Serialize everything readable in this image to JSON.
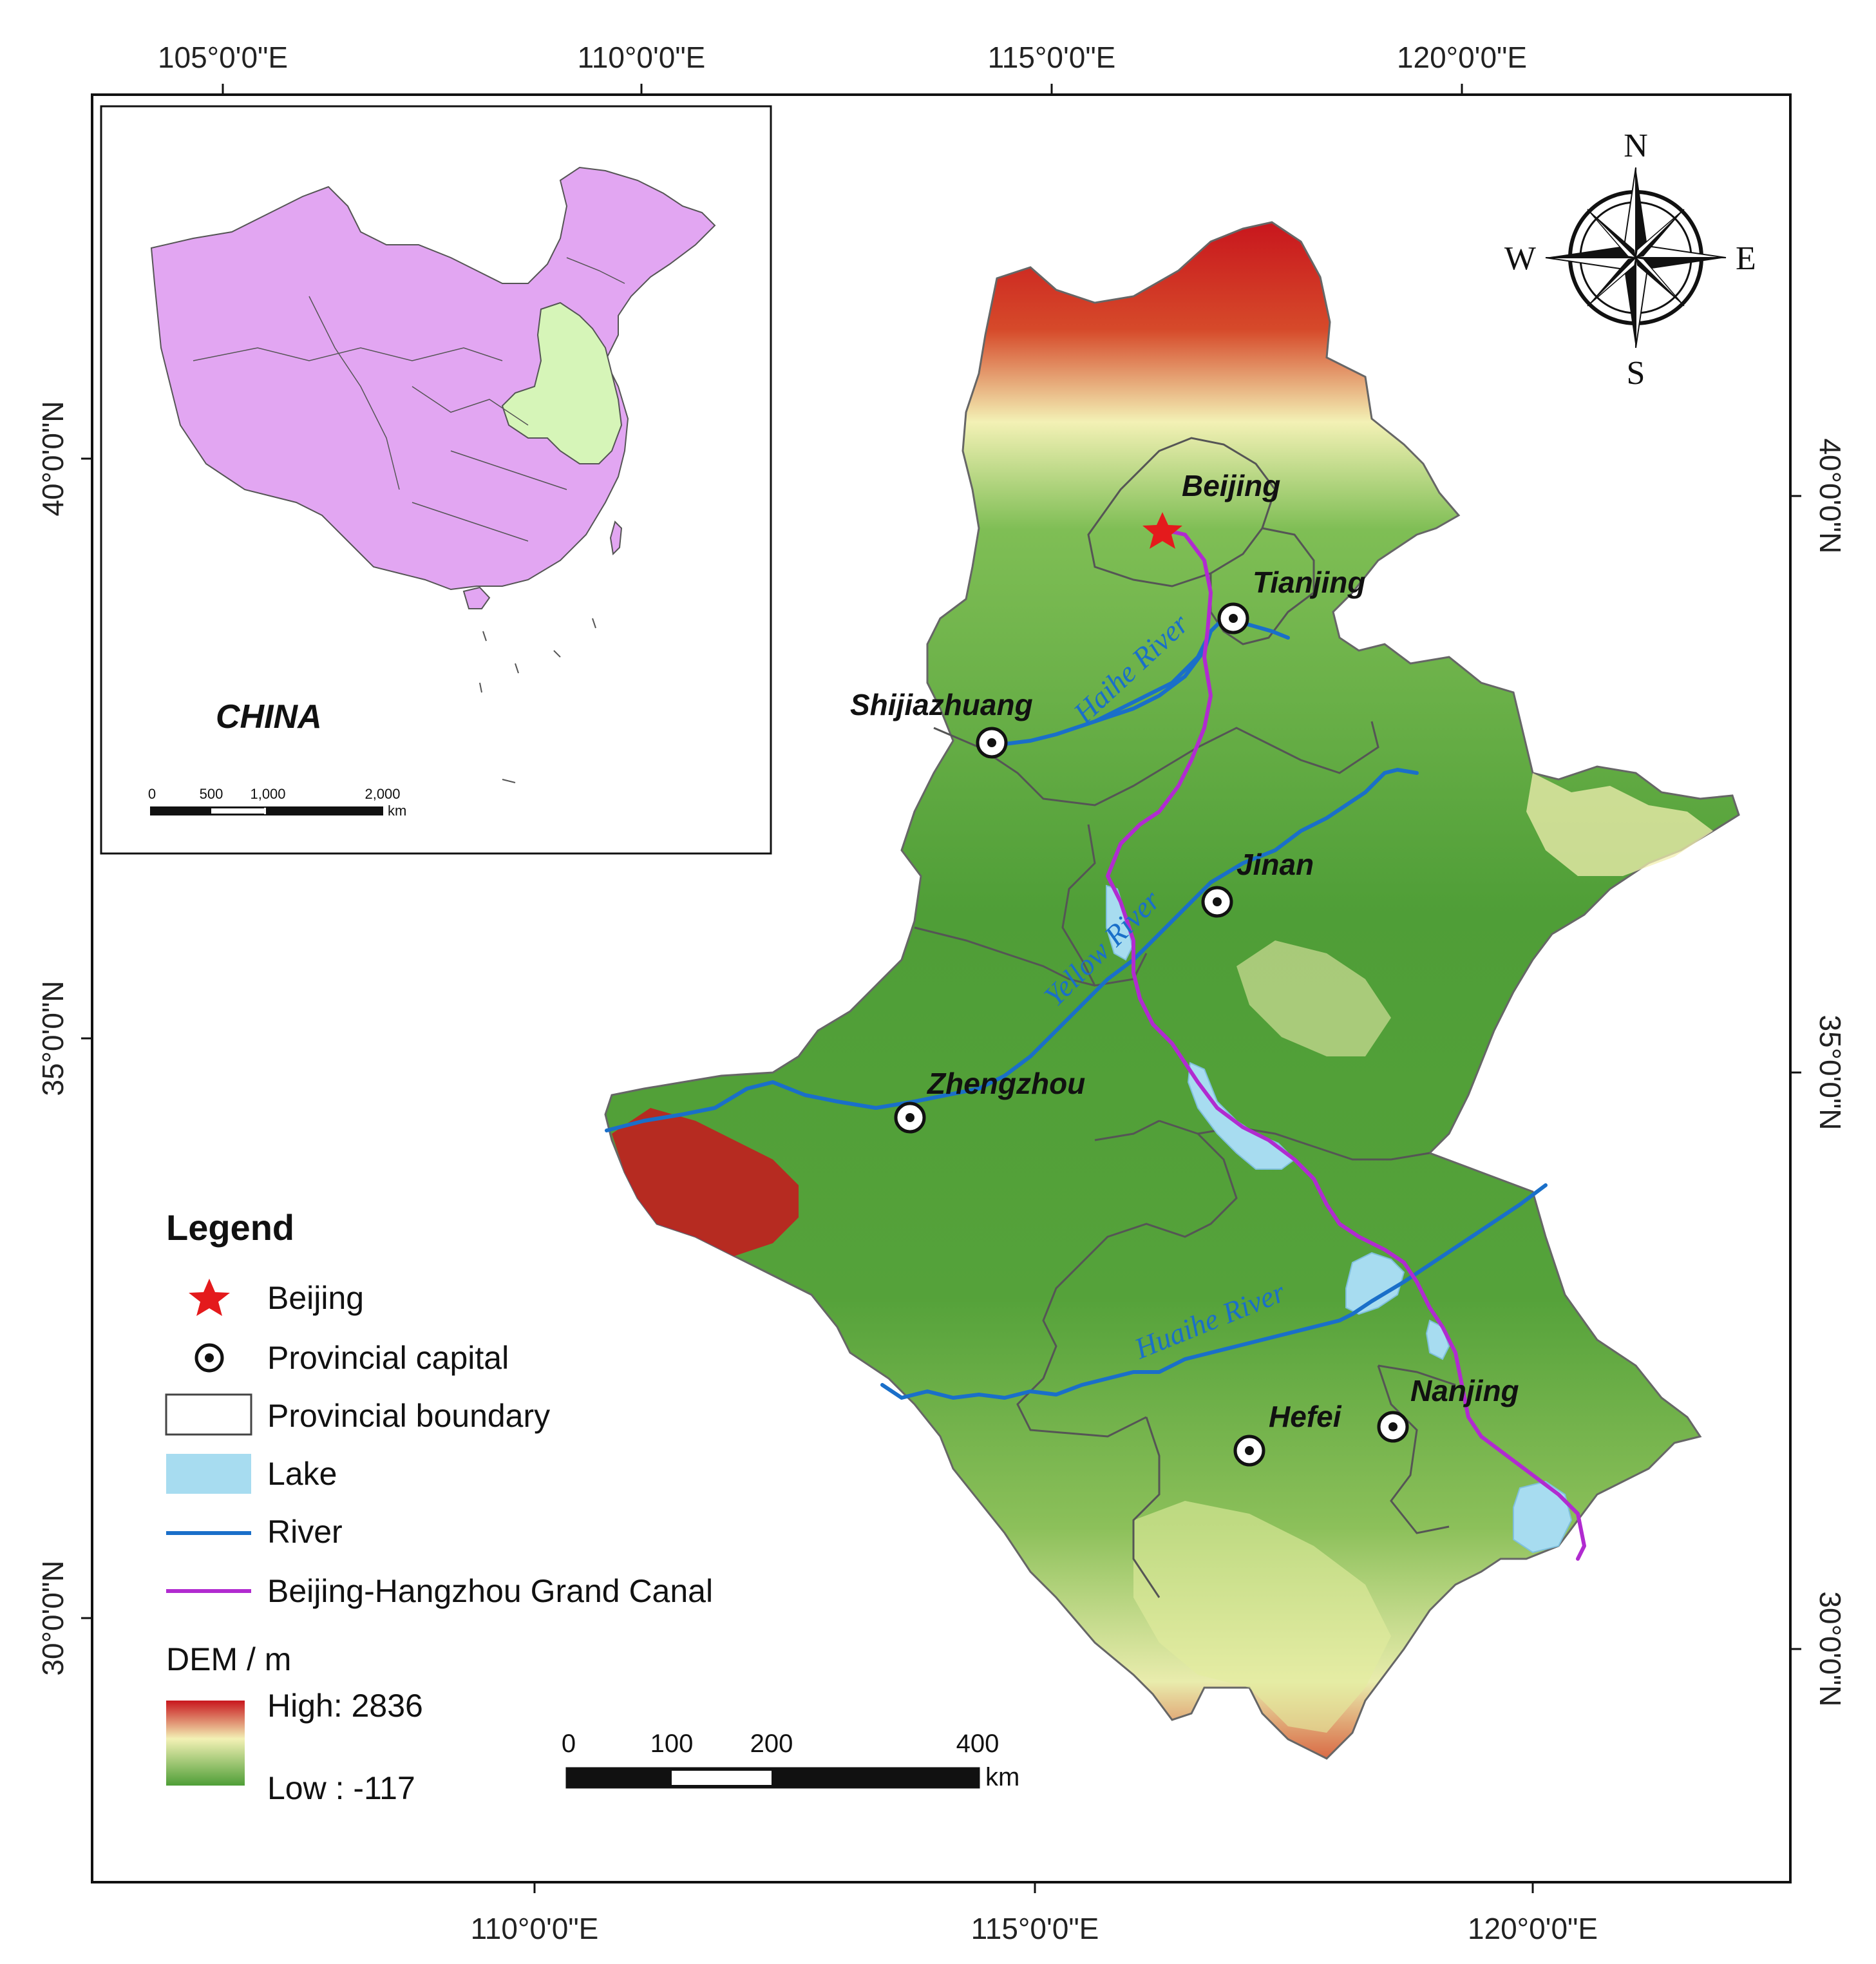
{
  "map": {
    "graticule": {
      "top_ticks": [
        "105°0'0\"E",
        "110°0'0\"E",
        "115°0'0\"E",
        "120°0'0\"E"
      ],
      "bottom_ticks": [
        "110°0'0\"E",
        "115°0'0\"E",
        "120°0'0\"E"
      ],
      "left_ticks": [
        "40°0'0\"N",
        "35°0'0\"N",
        "30°0'0\"N"
      ],
      "right_ticks": [
        "40°0'0\"N",
        "35°0'0\"N",
        "30°0'0\"N"
      ]
    },
    "cities": [
      {
        "name": "Beijing",
        "type": "capital"
      },
      {
        "name": "Tianjing",
        "type": "provincial-capital"
      },
      {
        "name": "Shijiazhuang",
        "type": "provincial-capital"
      },
      {
        "name": "Jinan",
        "type": "provincial-capital"
      },
      {
        "name": "Zhengzhou",
        "type": "provincial-capital"
      },
      {
        "name": "Hefei",
        "type": "provincial-capital"
      },
      {
        "name": "Nanjing",
        "type": "provincial-capital"
      }
    ],
    "rivers": [
      {
        "name": "Haihe River"
      },
      {
        "name": "Yellow River"
      },
      {
        "name": "Huaihe River"
      }
    ],
    "colors": {
      "dem_high": "#c8161d",
      "dem_mid": "#f3f1b5",
      "dem_low": "#4f9e37",
      "lake": "#a7dcf0",
      "river": "#1a6fc9",
      "canal": "#b12bd0",
      "capital_star": "#e41a1c",
      "boundary": "#555555"
    }
  },
  "inset": {
    "label": "CHINA",
    "scale_ticks": [
      "0",
      "500",
      "1,000",
      "2,000"
    ],
    "scale_unit": "km",
    "colors": {
      "china": "#e2a6f2",
      "study_area": "#d6f5b8"
    }
  },
  "compass": {
    "n": "N",
    "s": "S",
    "e": "E",
    "w": "W"
  },
  "legend": {
    "title": "Legend",
    "items": [
      {
        "label": "Beijing",
        "symbol": "star-icon"
      },
      {
        "label": "Provincial capital",
        "symbol": "circle-dot-icon"
      },
      {
        "label": "Provincial boundary",
        "symbol": "rectangle-outline"
      },
      {
        "label": "Lake",
        "symbol": "lake-swatch"
      },
      {
        "label": "River",
        "symbol": "river-line"
      },
      {
        "label": "Beijing-Hangzhou Grand Canal",
        "symbol": "canal-line"
      }
    ],
    "dem_title": "DEM / m",
    "dem_high": "High: 2836",
    "dem_low": "Low : -117"
  },
  "scale_bar": {
    "ticks": [
      "0",
      "100",
      "200",
      "400"
    ],
    "unit": "km"
  }
}
